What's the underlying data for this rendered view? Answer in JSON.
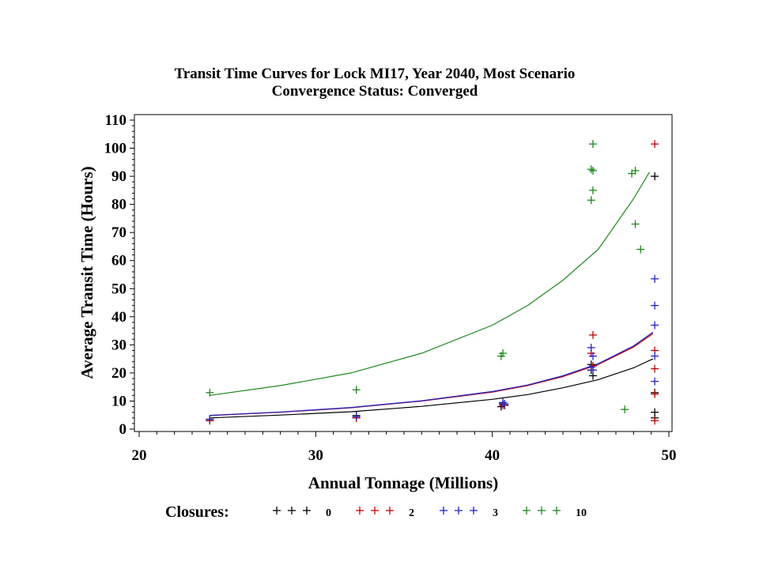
{
  "chart_data": {
    "type": "scatter",
    "title": "Transit Time Curves for Lock MI17, Year 2040, Most Scenario",
    "subtitle": "Convergence Status: Converged",
    "xlabel": "Annual Tonnage (Millions)",
    "ylabel": "Average Transit Time (Hours)",
    "xlim": [
      19.5,
      50
    ],
    "ylim": [
      -1,
      112
    ],
    "x_ticks": [
      20,
      30,
      40,
      50
    ],
    "y_ticks": [
      0,
      10,
      20,
      30,
      40,
      50,
      60,
      70,
      80,
      90,
      100,
      110
    ],
    "grid": false,
    "legend": {
      "title": "Closures:",
      "placement": "bottom",
      "marker": "+"
    },
    "series": [
      {
        "name": "0",
        "color": "#000000",
        "points": [
          [
            24.0,
            3.5
          ],
          [
            32.3,
            4.0
          ],
          [
            32.3,
            4.8
          ],
          [
            40.5,
            8.0
          ],
          [
            40.6,
            9.0
          ],
          [
            40.7,
            8.5
          ],
          [
            45.6,
            21.0
          ],
          [
            45.7,
            19.0
          ],
          [
            45.6,
            23.0
          ],
          [
            49.2,
            90.0
          ],
          [
            49.2,
            13.0
          ],
          [
            49.2,
            6.0
          ],
          [
            49.2,
            4.0
          ]
        ],
        "curve": [
          [
            24.0,
            4.0
          ],
          [
            28,
            5.0
          ],
          [
            32,
            6.2
          ],
          [
            36,
            8.1
          ],
          [
            40,
            10.6
          ],
          [
            42,
            12.3
          ],
          [
            44,
            14.7
          ],
          [
            46,
            17.6
          ],
          [
            48,
            21.8
          ],
          [
            49.1,
            25.0
          ]
        ]
      },
      {
        "name": "2",
        "color": "#cc0000",
        "points": [
          [
            24.0,
            3.0
          ],
          [
            32.3,
            4.0
          ],
          [
            40.6,
            8.5
          ],
          [
            45.7,
            33.5
          ],
          [
            45.6,
            27.0
          ],
          [
            45.7,
            22.5
          ],
          [
            49.2,
            101.5
          ],
          [
            49.2,
            28.0
          ],
          [
            49.2,
            21.5
          ],
          [
            49.2,
            12.5
          ],
          [
            49.2,
            3.0
          ]
        ],
        "curve": [
          [
            24.0,
            4.8
          ],
          [
            28,
            6.0
          ],
          [
            32,
            7.6
          ],
          [
            36,
            10.0
          ],
          [
            40,
            13.2
          ],
          [
            42,
            15.5
          ],
          [
            44,
            18.7
          ],
          [
            46,
            23.0
          ],
          [
            48,
            29.2
          ],
          [
            49.1,
            34.0
          ]
        ]
      },
      {
        "name": "3",
        "color": "#2222cc",
        "points": [
          [
            24.0,
            3.5
          ],
          [
            32.3,
            4.5
          ],
          [
            40.6,
            9.5
          ],
          [
            40.7,
            9.0
          ],
          [
            45.6,
            29.0
          ],
          [
            45.7,
            26.0
          ],
          [
            45.6,
            22.0
          ],
          [
            45.7,
            21.0
          ],
          [
            49.2,
            53.5
          ],
          [
            49.2,
            44.0
          ],
          [
            49.2,
            37.0
          ],
          [
            49.2,
            26.0
          ],
          [
            49.2,
            17.0
          ]
        ],
        "curve": [
          [
            24.0,
            4.9
          ],
          [
            28,
            6.1
          ],
          [
            32,
            7.7
          ],
          [
            36,
            10.1
          ],
          [
            40,
            13.4
          ],
          [
            42,
            15.7
          ],
          [
            44,
            19.0
          ],
          [
            46,
            23.3
          ],
          [
            48,
            29.6
          ],
          [
            49.1,
            34.5
          ]
        ]
      },
      {
        "name": "10",
        "color": "#1a8a1a",
        "points": [
          [
            24.0,
            13.0
          ],
          [
            32.3,
            14.0
          ],
          [
            40.6,
            27.0
          ],
          [
            40.5,
            26.0
          ],
          [
            45.7,
            101.5
          ],
          [
            45.6,
            92.5
          ],
          [
            45.7,
            92.0
          ],
          [
            45.7,
            85.0
          ],
          [
            45.6,
            81.5
          ],
          [
            47.5,
            7.0
          ],
          [
            47.9,
            91.0
          ],
          [
            48.1,
            92.0
          ],
          [
            48.1,
            73.0
          ],
          [
            48.4,
            64.0
          ]
        ],
        "curve": [
          [
            24.0,
            12.0
          ],
          [
            28,
            15.5
          ],
          [
            32,
            20.0
          ],
          [
            36,
            27.0
          ],
          [
            40,
            37.0
          ],
          [
            42,
            44.0
          ],
          [
            44,
            53.0
          ],
          [
            46,
            64.0
          ],
          [
            48,
            82.0
          ],
          [
            48.9,
            91.5
          ]
        ]
      }
    ]
  }
}
